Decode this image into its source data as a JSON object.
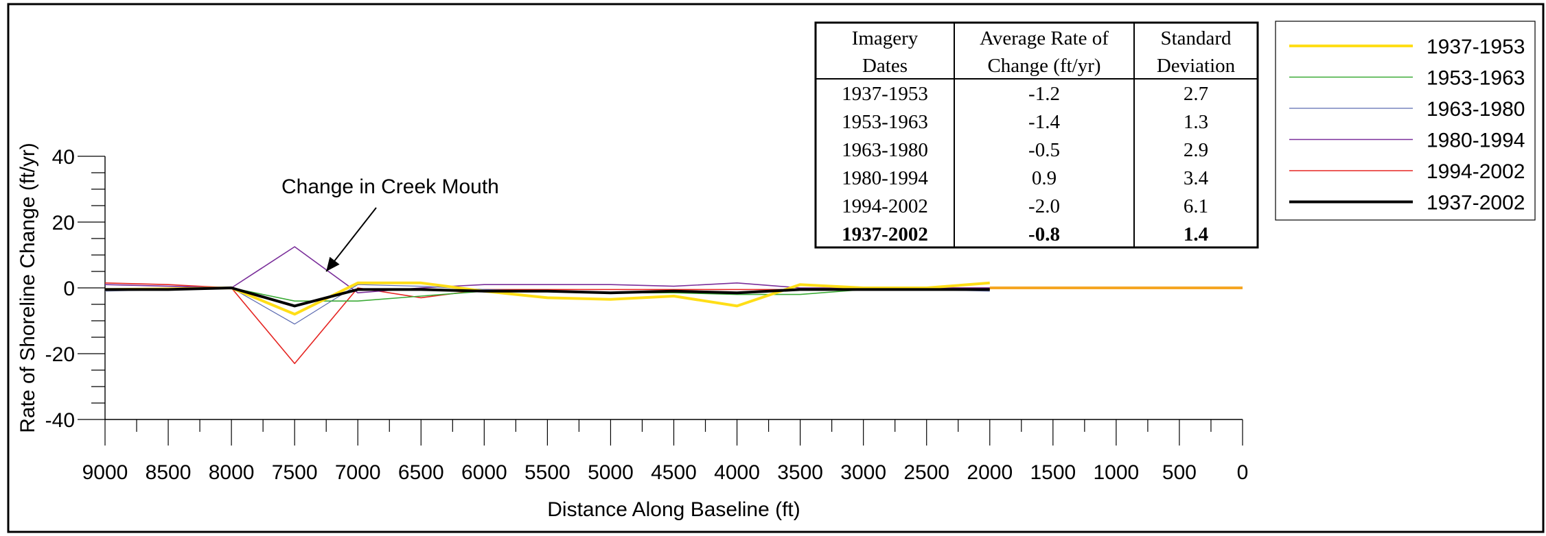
{
  "chart_data": {
    "type": "line",
    "xlabel": "Distance Along Baseline (ft)",
    "ylabel": "Rate of Shoreline Change (ft/yr)",
    "xlim": [
      9000,
      0
    ],
    "ylim": [
      -40,
      40
    ],
    "x_ticks": [
      9000,
      8500,
      8000,
      7500,
      7000,
      6500,
      6000,
      5500,
      5000,
      4500,
      4000,
      3500,
      3000,
      2500,
      2000,
      1500,
      1000,
      500,
      0
    ],
    "y_ticks": [
      40,
      20,
      0,
      -20,
      -40
    ],
    "grid": false,
    "legend_position": "top-right",
    "annotation": {
      "text": "Change in Creek Mouth",
      "points_to": {
        "x": 7250,
        "y": 5
      }
    },
    "series": [
      {
        "name": "1937-1953",
        "color": "#ffde17",
        "width": 4,
        "x": [
          9000,
          8500,
          8000,
          7500,
          7000,
          6500,
          6000,
          5500,
          5000,
          4500,
          4000,
          3500,
          3000,
          2500,
          2000
        ],
        "y": [
          -0.5,
          -0.3,
          0,
          -8,
          1.5,
          1.5,
          -1,
          -3,
          -3.5,
          -2.5,
          -5.5,
          1,
          0,
          0,
          1.5
        ]
      },
      {
        "name": "1953-1963",
        "color": "#3aaa35",
        "width": 1.6,
        "x": [
          9000,
          8500,
          8000,
          7500,
          7000,
          6500,
          6000,
          5500,
          5000,
          4500,
          4000,
          3500,
          3000,
          2500,
          2000
        ],
        "y": [
          -0.5,
          -0.5,
          0,
          -4,
          -4,
          -2.5,
          -1,
          -1,
          -1.5,
          -1.5,
          -2,
          -2,
          -0.5,
          -0.5,
          -0.5
        ]
      },
      {
        "name": "1963-1980",
        "color": "#5b6ab0",
        "width": 1.2,
        "x": [
          9000,
          8500,
          8000,
          7500,
          7000,
          6500,
          6000,
          5500,
          5000,
          4500,
          4000,
          3500,
          3000,
          2500,
          2000
        ],
        "y": [
          -1,
          -0.5,
          0,
          -11,
          1,
          0.5,
          -0.5,
          -1,
          -1.5,
          -1,
          -1.5,
          -0.5,
          -0.5,
          -0.5,
          -1
        ]
      },
      {
        "name": "1980-1994",
        "color": "#7a2e9a",
        "width": 1.6,
        "x": [
          9000,
          8500,
          8000,
          7500,
          7000,
          6500,
          6000,
          5500,
          5000,
          4500,
          4000,
          3500,
          3000,
          2500,
          2000
        ],
        "y": [
          1,
          0.5,
          0,
          12.5,
          -1.5,
          0,
          1,
          1,
          1,
          0.5,
          1.5,
          0,
          0,
          0,
          0
        ]
      },
      {
        "name": "1994-2002",
        "color": "#e52421",
        "width": 1.6,
        "x": [
          9000,
          8500,
          8000,
          7500,
          7000,
          6500,
          6000,
          5500,
          5000,
          4500,
          4000,
          3500,
          3000,
          2500,
          2000
        ],
        "y": [
          1.5,
          1,
          0,
          -23,
          0,
          -3,
          -0.5,
          -0.5,
          -0.5,
          -0.5,
          -0.5,
          -0.5,
          0,
          0,
          0
        ]
      },
      {
        "name": "1937-2002",
        "color": "#000000",
        "width": 4,
        "x": [
          9000,
          8500,
          8000,
          7500,
          7000,
          6500,
          6000,
          5500,
          5000,
          4500,
          4000,
          3500,
          3000,
          2500,
          2000
        ],
        "y": [
          -0.5,
          -0.5,
          0,
          -5.5,
          -0.5,
          -0.5,
          -1,
          -1,
          -1.5,
          -1,
          -1.5,
          -0.5,
          -0.5,
          -0.5,
          -0.5
        ]
      },
      {
        "name": "",
        "color": "#f5a623",
        "width": 4,
        "x": [
          2000,
          0
        ],
        "y": [
          0,
          0
        ]
      }
    ],
    "table": {
      "headers": [
        [
          "Imagery",
          "Dates"
        ],
        [
          "Average Rate of",
          "Change (ft/yr)"
        ],
        [
          "Standard",
          "Deviation"
        ]
      ],
      "rows": [
        [
          "1937-1953",
          "-1.2",
          "2.7"
        ],
        [
          "1953-1963",
          "-1.4",
          "1.3"
        ],
        [
          "1963-1980",
          "-0.5",
          "2.9"
        ],
        [
          "1980-1994",
          "0.9",
          "3.4"
        ],
        [
          "1994-2002",
          "-2.0",
          "6.1"
        ],
        [
          "1937-2002",
          "-0.8",
          "1.4"
        ]
      ],
      "bold_row": 5
    }
  }
}
